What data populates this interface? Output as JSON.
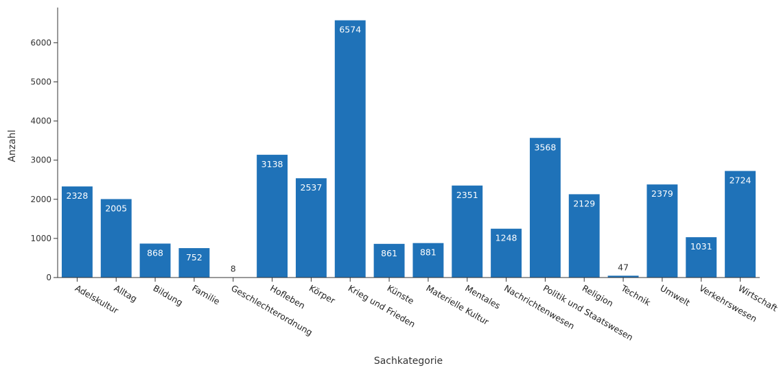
{
  "chart_data": {
    "type": "bar",
    "title": "",
    "xlabel": "Sachkategorie",
    "ylabel": "Anzahl",
    "ylim": [
      0,
      6900
    ],
    "yticks": [
      0,
      1000,
      2000,
      3000,
      4000,
      5000,
      6000
    ],
    "grid": false,
    "bar_color": "#1f72b8",
    "categories": [
      "Adelskultur",
      "Alltag",
      "Bildung",
      "Familie",
      "Geschlechterordnung",
      "Hofleben",
      "Körper",
      "Krieg und Frieden",
      "Künste",
      "Materielle Kultur",
      "Mentales",
      "Nachrichtenwesen",
      "Politik und Staatswesen",
      "Religion",
      "Technik",
      "Umwelt",
      "Verkehrswesen",
      "Wirtschaft"
    ],
    "values": [
      2328,
      2005,
      868,
      752,
      8,
      3138,
      2537,
      6574,
      861,
      881,
      2351,
      1248,
      3568,
      2129,
      47,
      2379,
      1031,
      2724
    ]
  }
}
